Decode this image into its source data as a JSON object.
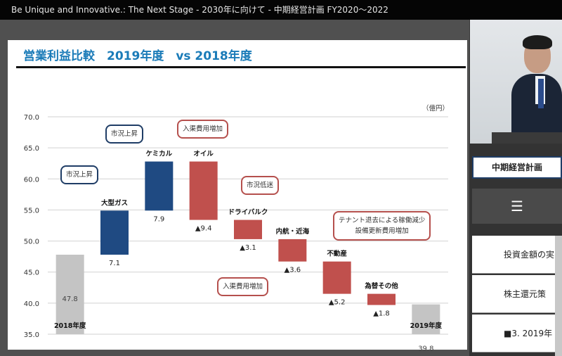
{
  "window": {
    "title": "Be Unique and Innovative.: The Next Stage - 2030年に向けて - 中期経営計画  FY2020～2022"
  },
  "slide": {
    "title": "営業利益比較　2019年度　vs 2018年度",
    "unit_label": "（億円）"
  },
  "callouts": [
    {
      "text": "市況上昇",
      "style": "blue"
    },
    {
      "text": "市況上昇",
      "style": "blue"
    },
    {
      "text": "入渠費用増加",
      "style": "red"
    },
    {
      "text": "市況低迷",
      "style": "red"
    },
    {
      "text": "テナント退去による稼働減少\n設備更新費用増加",
      "style": "red"
    },
    {
      "text": "入渠費用増加",
      "style": "red"
    }
  ],
  "sidebar": {
    "menu_title": "中期経営計画",
    "menu_icon": "hamburger-icon",
    "items": [
      {
        "label": "投資金額の実"
      },
      {
        "label": "株主還元策"
      },
      {
        "label": "■3. 2019年"
      }
    ]
  },
  "colors": {
    "increase": "#1f4a82",
    "decrease": "#c0504d",
    "total": "#c4c4c4",
    "title_blue": "#1a7bb8"
  },
  "chart_data": {
    "type": "bar",
    "subtype": "waterfall",
    "ylim": [
      35.0,
      70.0
    ],
    "yticks": [
      "35.0",
      "40.0",
      "45.0",
      "50.0",
      "55.0",
      "60.0",
      "65.0",
      "70.0"
    ],
    "grid": true,
    "steps": [
      {
        "name": "2018年度",
        "kind": "total",
        "value": 47.8,
        "label": "47.8"
      },
      {
        "name": "大型ガス",
        "kind": "increase",
        "value": 7.1,
        "label": "7.1"
      },
      {
        "name": "ケミカル",
        "kind": "increase",
        "value": 7.9,
        "label": "7.9"
      },
      {
        "name": "オイル",
        "kind": "decrease",
        "value": -9.4,
        "label": "▲9.4"
      },
      {
        "name": "ドライバルク",
        "kind": "decrease",
        "value": -3.1,
        "label": "▲3.1"
      },
      {
        "name": "内航・近海",
        "kind": "decrease",
        "value": -3.6,
        "label": "▲3.6"
      },
      {
        "name": "不動産",
        "kind": "decrease",
        "value": -5.2,
        "label": "▲5.2"
      },
      {
        "name": "為替その他",
        "kind": "decrease",
        "value": -1.8,
        "label": "▲1.8"
      },
      {
        "name": "2019年度",
        "kind": "total",
        "value": 39.8,
        "label": "39.8"
      }
    ]
  }
}
